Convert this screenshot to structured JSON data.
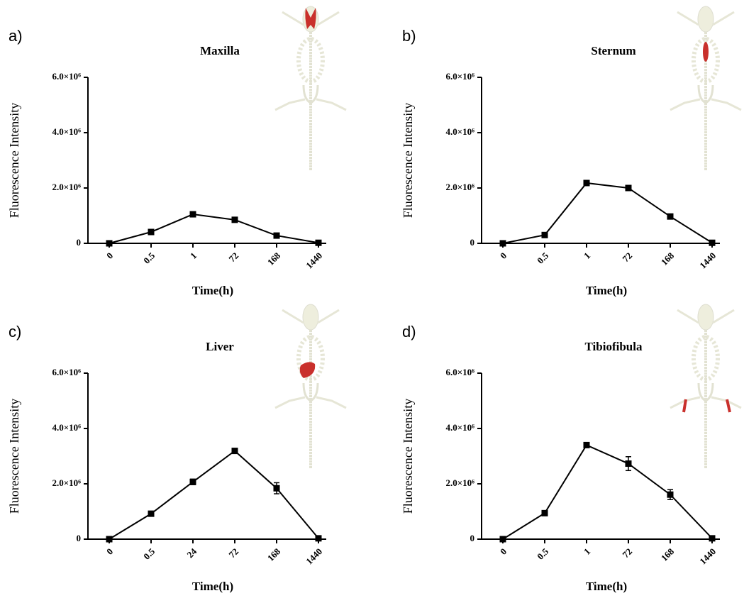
{
  "chart_data": [
    {
      "type": "line",
      "panel_label": "a)",
      "title": "Maxilla",
      "x_label": "Time(h)",
      "y_label": "Fluorescence Intensity",
      "categories": [
        "0",
        "0.5",
        "1",
        "72",
        "168",
        "1440"
      ],
      "series": [
        {
          "color": "#000000",
          "values": [
            0,
            410000,
            1050000,
            850000,
            280000,
            20000
          ],
          "errors": [
            0,
            40000,
            50000,
            80000,
            40000,
            0
          ]
        }
      ],
      "ylim": [
        0,
        6000000
      ],
      "yticks": [
        0,
        {
          "value": 2000000,
          "label": "2.0×10⁶"
        },
        {
          "value": 4000000,
          "label": "4.0×10⁶"
        },
        {
          "value": 6000000,
          "label": "6.0×10⁶"
        }
      ]
    },
    {
      "type": "line",
      "panel_label": "b)",
      "title": "Sternum",
      "x_label": "Time(h)",
      "y_label": "Fluorescence Intensity",
      "categories": [
        "0",
        "0.5",
        "1",
        "72",
        "168",
        "1440"
      ],
      "series": [
        {
          "color": "#000000",
          "values": [
            0,
            300000,
            2180000,
            2000000,
            970000,
            20000
          ],
          "errors": [
            0,
            40000,
            50000,
            50000,
            50000,
            0
          ]
        }
      ],
      "ylim": [
        0,
        6000000
      ],
      "yticks": [
        0,
        {
          "value": 2000000,
          "label": "2.0×10⁶"
        },
        {
          "value": 4000000,
          "label": "4.0×10⁶"
        },
        {
          "value": 6000000,
          "label": "6.0×10⁶"
        }
      ]
    },
    {
      "type": "line",
      "panel_label": "c)",
      "title": "Liver",
      "x_label": "Time(h)",
      "y_label": "Fluorescence Intensity",
      "categories": [
        "0",
        "0.5",
        "24",
        "72",
        "168",
        "1440"
      ],
      "series": [
        {
          "color": "#000000",
          "values": [
            0,
            920000,
            2070000,
            3190000,
            1840000,
            30000
          ],
          "errors": [
            0,
            50000,
            100000,
            80000,
            200000,
            0
          ]
        }
      ],
      "ylim": [
        0,
        6000000
      ],
      "yticks": [
        0,
        {
          "value": 2000000,
          "label": "2.0×10⁶"
        },
        {
          "value": 4000000,
          "label": "4.0×10⁶"
        },
        {
          "value": 6000000,
          "label": "6.0×10⁶"
        }
      ]
    },
    {
      "type": "line",
      "panel_label": "d)",
      "title": "Tibiofibula",
      "x_label": "Time(h)",
      "y_label": "Fluorescence Intensity",
      "categories": [
        "0",
        "0.5",
        "1",
        "72",
        "168",
        "1440"
      ],
      "series": [
        {
          "color": "#000000",
          "values": [
            0,
            940000,
            3400000,
            2730000,
            1610000,
            30000
          ],
          "errors": [
            0,
            40000,
            80000,
            250000,
            180000,
            0
          ]
        }
      ],
      "ylim": [
        0,
        6000000
      ],
      "yticks": [
        0,
        {
          "value": 2000000,
          "label": "2.0×10⁶"
        },
        {
          "value": 4000000,
          "label": "4.0×10⁶"
        },
        {
          "value": 6000000,
          "label": "6.0×10⁶"
        }
      ]
    }
  ]
}
